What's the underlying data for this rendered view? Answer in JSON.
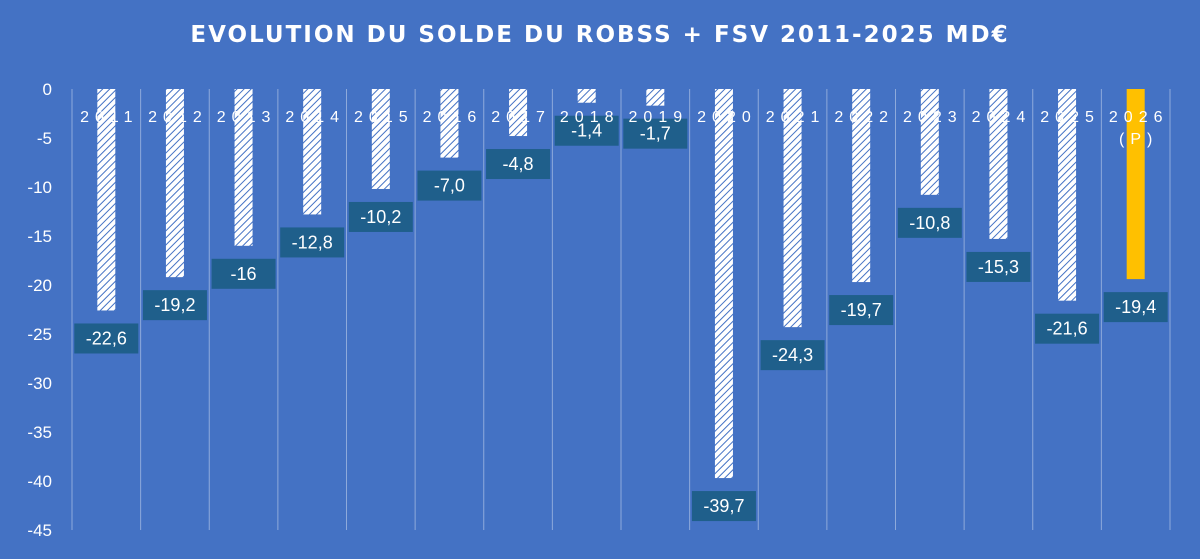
{
  "chart_data": {
    "type": "bar",
    "title": "EVOLUTION DU SOLDE DU ROBSS + FSV 2011-2025 MD€",
    "xlabel": "",
    "ylabel": "",
    "categories": [
      "2011",
      "2012",
      "2013",
      "2014",
      "2015",
      "2016",
      "2017",
      "2018",
      "2019",
      "2020",
      "2021",
      "2022",
      "2023",
      "2024",
      "2025",
      "2026 (P)"
    ],
    "category_lines": [
      [
        "2011"
      ],
      [
        "2012"
      ],
      [
        "2013"
      ],
      [
        "2014"
      ],
      [
        "2015"
      ],
      [
        "2016"
      ],
      [
        "2017"
      ],
      [
        "2018"
      ],
      [
        "2019"
      ],
      [
        "2020"
      ],
      [
        "2021"
      ],
      [
        "2022"
      ],
      [
        "2023"
      ],
      [
        "2024"
      ],
      [
        "2025"
      ],
      [
        "2026",
        "(P)"
      ]
    ],
    "values": [
      -22.6,
      -19.2,
      -16,
      -12.8,
      -10.2,
      -7.0,
      -4.8,
      -1.4,
      -1.7,
      -39.7,
      -24.3,
      -19.7,
      -10.8,
      -15.3,
      -21.6,
      -19.4
    ],
    "data_labels": [
      "-22,6",
      "-19,2",
      "-16",
      "-12,8",
      "-10,2",
      "-7,0",
      "-4,8",
      "-1,4",
      "-1,7",
      "-39,7",
      "-24,3",
      "-19,7",
      "-10,8",
      "-15,3",
      "-21,6",
      "-19,4"
    ],
    "yticks": [
      0,
      -5,
      -10,
      -15,
      -20,
      -25,
      -30,
      -35,
      -40,
      -45
    ],
    "ytick_labels": [
      "0",
      "-5",
      "-10",
      "-15",
      "-20",
      "-25",
      "-30",
      "-35",
      "-40",
      "-45"
    ],
    "ylim": [
      -45,
      0
    ],
    "grid": "vertical",
    "colors": {
      "background": "#4472c4",
      "bar_pattern": "hatched-white",
      "bar_highlight": "#ffc000",
      "label_box": "#1f5f8b",
      "gridline": "#8eaadb"
    },
    "highlight_index": 15
  }
}
